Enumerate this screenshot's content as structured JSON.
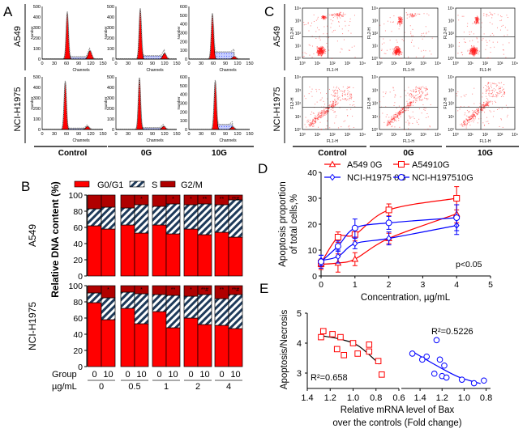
{
  "panel_letters": [
    "A",
    "B",
    "C",
    "D",
    "E"
  ],
  "row_labels": [
    "A549",
    "NCI-H1975"
  ],
  "group_labels": [
    "Control",
    "0G",
    "10G"
  ],
  "chart_data": [
    {
      "panel": "A",
      "type": "area",
      "xlabel": "Channels",
      "ylabel": "Number",
      "xlim": [
        0,
        150
      ],
      "xticks": [
        "0",
        "30",
        "60",
        "90",
        "120",
        "150"
      ],
      "colors": {
        "g1": "#ff0000",
        "g2": "#ff0000",
        "s": "#a9b4ff"
      },
      "panels": [
        {
          "row": "A549",
          "group": "Control",
          "ymax": 500,
          "yticks": [
            "0",
            "100",
            "200",
            "300",
            "400",
            "500"
          ],
          "g1_channel": 62,
          "g1_peak": 450,
          "g2_channel": 118,
          "g2_peak": 80,
          "s_level": 20
        },
        {
          "row": "A549",
          "group": "0G",
          "ymax": 500,
          "yticks": [
            "0",
            "100",
            "200",
            "300",
            "400",
            "500"
          ],
          "g1_channel": 60,
          "g1_peak": 480,
          "g2_channel": 120,
          "g2_peak": 55,
          "s_level": 30
        },
        {
          "row": "A549",
          "group": "10G",
          "ymax": 600,
          "yticks": [
            "0",
            "100",
            "200",
            "300",
            "400",
            "500",
            "600"
          ],
          "g1_channel": 58,
          "g1_peak": 520,
          "g2_channel": 112,
          "g2_peak": 30,
          "s_level": 80
        },
        {
          "row": "NCI-H1975",
          "group": "Control",
          "ymax": 500,
          "yticks": [
            "0",
            "100",
            "200",
            "300",
            "400",
            "500"
          ],
          "g1_channel": 57,
          "g1_peak": 460,
          "g2_channel": 112,
          "g2_peak": 30,
          "s_level": 10
        },
        {
          "row": "NCI-H1975",
          "group": "0G",
          "ymax": 500,
          "yticks": [
            "0",
            "100",
            "200",
            "300",
            "400",
            "500"
          ],
          "g1_channel": 58,
          "g1_peak": 490,
          "g2_channel": 118,
          "g2_peak": 30,
          "s_level": 15
        },
        {
          "row": "NCI-H1975",
          "group": "10G",
          "ymax": 600,
          "yticks": [
            "0",
            "100",
            "200",
            "300",
            "400",
            "500",
            "600"
          ],
          "g1_channel": 65,
          "g1_peak": 560,
          "g2_channel": 108,
          "g2_peak": 30,
          "s_level": 55
        }
      ]
    },
    {
      "panel": "B",
      "type": "bar",
      "stacked": true,
      "ylabel": "Relative DNA content (%)",
      "ylim": [
        0,
        100
      ],
      "yticks": [
        "0",
        "20",
        "40",
        "60",
        "80",
        "100"
      ],
      "legend": [
        "G0/G1",
        "S",
        "G2/M"
      ],
      "legend_position": "top",
      "colors": {
        "G0/G1": "#ff0000",
        "S": "#1e3a5a",
        "G2/M": "#b00000"
      },
      "group_row_label": "Group",
      "conc_row_label": "µg/mL",
      "concentrations": [
        "0",
        "0.5",
        "1",
        "2",
        "4"
      ],
      "groups": [
        "0",
        "10"
      ],
      "rows": [
        {
          "name": "A549",
          "bars": [
            {
              "conc": "0",
              "group": "0",
              "G0/G1": 62,
              "S": 21,
              "G2/M": 17,
              "mark": ""
            },
            {
              "conc": "0",
              "group": "10",
              "G0/G1": 58,
              "S": 27,
              "G2/M": 15,
              "mark": ""
            },
            {
              "conc": "0.5",
              "group": "0",
              "G0/G1": 63,
              "S": 21,
              "G2/M": 16,
              "mark": ""
            },
            {
              "conc": "0.5",
              "group": "10",
              "G0/G1": 53,
              "S": 35,
              "G2/M": 12,
              "mark": "*"
            },
            {
              "conc": "1",
              "group": "0",
              "G0/G1": 63,
              "S": 23,
              "G2/M": 14,
              "mark": ""
            },
            {
              "conc": "1",
              "group": "10",
              "G0/G1": 52,
              "S": 37,
              "G2/M": 11,
              "mark": "*"
            },
            {
              "conc": "2",
              "group": "0",
              "G0/G1": 58,
              "S": 30,
              "G2/M": 12,
              "mark": "*"
            },
            {
              "conc": "2",
              "group": "10",
              "G0/G1": 51,
              "S": 38,
              "G2/M": 11,
              "mark": "**"
            },
            {
              "conc": "4",
              "group": "0",
              "G0/G1": 54,
              "S": 34,
              "G2/M": 12,
              "mark": "**"
            },
            {
              "conc": "4",
              "group": "10",
              "G0/G1": 48,
              "S": 46,
              "G2/M": 6,
              "mark": "**#"
            }
          ]
        },
        {
          "name": "NCI-H1975",
          "bars": [
            {
              "conc": "0",
              "group": "0",
              "G0/G1": 79,
              "S": 12,
              "G2/M": 9,
              "mark": ""
            },
            {
              "conc": "0",
              "group": "10",
              "G0/G1": 58,
              "S": 27,
              "G2/M": 15,
              "mark": "*"
            },
            {
              "conc": "0.5",
              "group": "0",
              "G0/G1": 72,
              "S": 20,
              "G2/M": 8,
              "mark": ""
            },
            {
              "conc": "0.5",
              "group": "10",
              "G0/G1": 53,
              "S": 37,
              "G2/M": 10,
              "mark": "*"
            },
            {
              "conc": "1",
              "group": "0",
              "G0/G1": 68,
              "S": 21,
              "G2/M": 11,
              "mark": ""
            },
            {
              "conc": "1",
              "group": "10",
              "G0/G1": 48,
              "S": 40,
              "G2/M": 12,
              "mark": "**"
            },
            {
              "conc": "2",
              "group": "0",
              "G0/G1": 60,
              "S": 27,
              "G2/M": 13,
              "mark": "*"
            },
            {
              "conc": "2",
              "group": "10",
              "G0/G1": 52,
              "S": 37,
              "G2/M": 11,
              "mark": "**#"
            },
            {
              "conc": "4",
              "group": "0",
              "G0/G1": 51,
              "S": 33,
              "G2/M": 16,
              "mark": "**"
            },
            {
              "conc": "4",
              "group": "10",
              "G0/G1": 47,
              "S": 42,
              "G2/M": 11,
              "mark": "**#"
            }
          ]
        }
      ]
    },
    {
      "panel": "C",
      "type": "scatter",
      "xlabel": "FL1-H",
      "ylabel": "FL2-H",
      "scale": "log",
      "xticks": [
        "10⁰",
        "10¹",
        "10²",
        "10³",
        "10⁴"
      ],
      "yticks": [
        "10⁰",
        "10¹",
        "10²",
        "10³",
        "10⁴"
      ],
      "color": "#ff0000",
      "quadrant_gate": true
    },
    {
      "panel": "D",
      "type": "line",
      "xlabel": "Concentration, µg/mL",
      "ylabel": [
        "Apoptosis proportion",
        "of total cells,%"
      ],
      "xlim": [
        0,
        5
      ],
      "ylim": [
        0,
        40
      ],
      "xticks": [
        "0",
        "1",
        "2",
        "3",
        "4",
        "5"
      ],
      "yticks": [
        "0",
        "10",
        "20",
        "30",
        "40"
      ],
      "legend_position": "top",
      "annotation": "p<0.05",
      "x": [
        0,
        0.5,
        1,
        2,
        4
      ],
      "series": [
        {
          "name": "A549 0G",
          "marker": "triangle",
          "color": "#ff0000",
          "values": [
            4.5,
            5,
            6.5,
            14.5,
            24
          ],
          "errors": [
            2,
            3.5,
            2.5,
            2,
            3.5
          ]
        },
        {
          "name": "A54910G",
          "marker": "square",
          "color": "#ff0000",
          "values": [
            5,
            15,
            16,
            25.5,
            30
          ],
          "errors": [
            1.5,
            2,
            2.5,
            2.3,
            4.5
          ]
        },
        {
          "name": "NCI-H1975 0G",
          "marker": "diamond",
          "color": "#0000ff",
          "values": [
            6,
            7.5,
            12.5,
            14.5,
            19.5
          ],
          "errors": [
            2,
            2.5,
            2,
            2.5,
            3.5
          ]
        },
        {
          "name": "NCI-H197510G",
          "marker": "circle",
          "color": "#0000ff",
          "values": [
            5.5,
            11.5,
            18.5,
            20.5,
            22.5
          ],
          "errors": [
            2.5,
            2,
            3.5,
            2.5,
            5
          ]
        }
      ]
    },
    {
      "panel": "E",
      "type": "scatter",
      "ylabel": "Apoptosis/Necrosis",
      "xlabel": [
        "Relative mRNA level of Bax",
        "over the controls (Fold change)"
      ],
      "ylim": [
        2.5,
        5
      ],
      "yticks": [
        "3",
        "4",
        "5"
      ],
      "series": [
        {
          "color": "#ff0000",
          "marker": "square",
          "xlim": [
            1.4,
            0.6
          ],
          "xticks": [
            "1.4",
            "1.2",
            "1.0",
            "0.8",
            "0.6"
          ],
          "r2_label": "R²=0.658",
          "trend_color": "#000000",
          "x": [
            1.28,
            1.26,
            1.18,
            1.11,
            1.14,
            1.08,
            1.0,
            0.96,
            0.86,
            0.86,
            0.78,
            0.75
          ],
          "y": [
            4.2,
            4.4,
            4.3,
            4.2,
            3.8,
            3.6,
            4.0,
            3.65,
            3.95,
            3.72,
            3.4,
            2.95
          ],
          "trend": [
            [
              1.28,
              4.25
            ],
            [
              1.1,
              4.12
            ],
            [
              0.95,
              3.9
            ],
            [
              0.77,
              3.3
            ]
          ]
        },
        {
          "color": "#0000ff",
          "marker": "circle",
          "xlim": [
            1.57,
            0.76
          ],
          "xticks": [
            "1.4",
            "1.2",
            "1.0",
            "0.8"
          ],
          "r2_label": "R²=0.5226",
          "trend_color": "#0000ff",
          "x": [
            1.47,
            1.38,
            1.34,
            1.25,
            1.22,
            1.18,
            1.27,
            1.2,
            1.16,
            1.02,
            0.91,
            0.82
          ],
          "y": [
            3.65,
            3.45,
            3.55,
            4.1,
            3.45,
            3.25,
            2.98,
            2.9,
            2.85,
            2.78,
            2.66,
            2.75
          ],
          "trend": [
            [
              1.46,
              3.7
            ],
            [
              1.25,
              3.25
            ],
            [
              1.05,
              2.87
            ],
            [
              0.85,
              2.65
            ]
          ]
        }
      ]
    }
  ]
}
